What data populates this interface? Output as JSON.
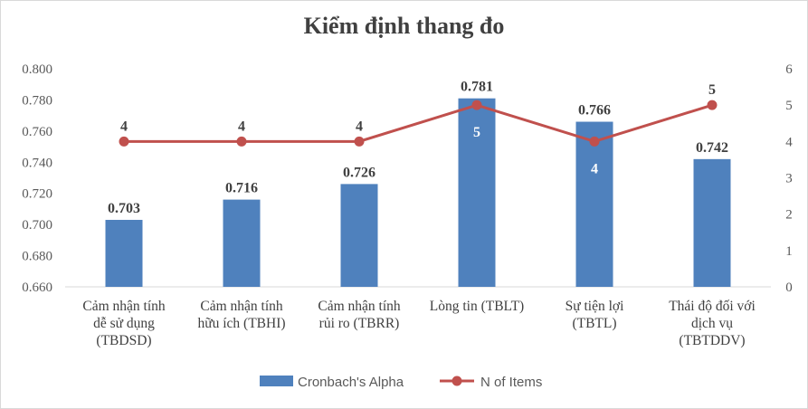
{
  "chart_data": {
    "type": "bar",
    "title": "Kiểm định thang đo",
    "categories": [
      [
        "Cảm nhận tính",
        "dễ sử dụng",
        "(TBDSD)"
      ],
      [
        "Cảm nhận tính",
        "hữu ích (TBHI)"
      ],
      [
        "Cảm nhận tính",
        "rủi ro (TBRR)"
      ],
      [
        "Lòng tin (TBLT)"
      ],
      [
        "Sự tiện lợi",
        "(TBTL)"
      ],
      [
        "Thái độ đối với",
        "dịch vụ",
        "(TBTDDV)"
      ]
    ],
    "series": [
      {
        "name": "Cronbach's Alpha",
        "type": "bar",
        "axis": "left",
        "color": "#4f81bd",
        "values": [
          0.703,
          0.716,
          0.726,
          0.781,
          0.766,
          0.742
        ],
        "labels": [
          "0.703",
          "0.716",
          "0.726",
          "0.781",
          "0.766",
          "0.742"
        ]
      },
      {
        "name": "N of Items",
        "type": "line",
        "axis": "right",
        "color": "#c0504d",
        "values": [
          4,
          4,
          4,
          5,
          4,
          5
        ],
        "labels": [
          "4",
          "4",
          "4",
          "5",
          "4",
          "5"
        ]
      }
    ],
    "y_left": {
      "lim": [
        0.66,
        0.8
      ],
      "ticks": [
        "0.660",
        "0.680",
        "0.700",
        "0.720",
        "0.740",
        "0.760",
        "0.780",
        "0.800"
      ]
    },
    "y_right": {
      "lim": [
        0,
        6
      ],
      "ticks": [
        "0",
        "1",
        "2",
        "3",
        "4",
        "5",
        "6"
      ]
    },
    "grid": false,
    "legend_position": "bottom"
  }
}
